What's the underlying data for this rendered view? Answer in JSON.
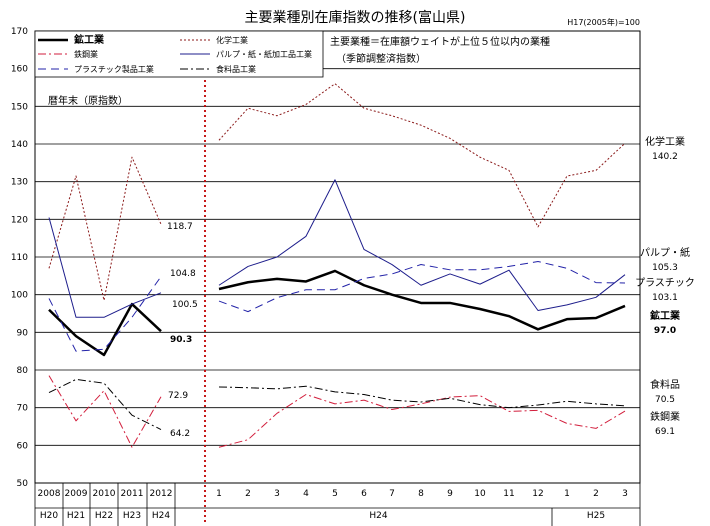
{
  "chart_data": {
    "type": "line",
    "title": "主要業種別在庫指数の推移(富山県)",
    "base_note": "H17(2005年)=100",
    "note_lines": [
      "主要業種＝在庫額ウェイトが上位５位以内の業種",
      "（季節調整済指数）"
    ],
    "panel_label": "暦年末（原指数）",
    "ylim": [
      50,
      170
    ],
    "yticks": [
      50,
      60,
      70,
      80,
      90,
      100,
      110,
      120,
      130,
      140,
      150,
      160,
      170
    ],
    "annual_x": [
      "2008",
      "2009",
      "2010",
      "2011",
      "2012"
    ],
    "annual_era": [
      "H20",
      "H21",
      "H22",
      "H23",
      "H24"
    ],
    "monthly_x": [
      "1",
      "2",
      "3",
      "4",
      "5",
      "6",
      "7",
      "8",
      "9",
      "10",
      "11",
      "12",
      "1",
      "2",
      "3"
    ],
    "monthly_group_labels": [
      {
        "label": "H24",
        "span": [
          0,
          11
        ]
      },
      {
        "label": "H25",
        "span": [
          12,
          14
        ]
      }
    ],
    "series": [
      {
        "key": "mining",
        "name": "鉱工業",
        "color": "#000000",
        "width": 2.5,
        "dash": "",
        "annual": [
          96,
          89,
          84,
          97.5,
          90.3
        ],
        "monthly": [
          101.5,
          103.3,
          104.2,
          103.5,
          106.3,
          102.5,
          100,
          97.8,
          97.8,
          96.2,
          94.3,
          90.8,
          93.5,
          93.8,
          97.0
        ],
        "end_label": [
          "鉱工業",
          "97.0"
        ],
        "end_color": "#000000",
        "annual_end": "90.3"
      },
      {
        "key": "chemical",
        "name": "化学工業",
        "color": "#8b1a1a",
        "width": 1,
        "dash": "2,2",
        "annual": [
          107,
          131.5,
          98.5,
          136.5,
          118.7
        ],
        "monthly": [
          141,
          149.5,
          147.5,
          150.5,
          156,
          149.5,
          147.5,
          145,
          141.5,
          136.5,
          133,
          118,
          131.5,
          133,
          140.2
        ],
        "end_label": [
          "化学工業",
          "140.2"
        ],
        "end_color": "#8b1a1a",
        "annual_end": "118.7"
      },
      {
        "key": "steel",
        "name": "鉄鋼業",
        "color": "#d21e3c",
        "width": 1,
        "dash": "8,3,2,3",
        "annual": [
          78.5,
          66.5,
          74.5,
          59.5,
          72.9
        ],
        "monthly": [
          59.5,
          61.5,
          68.5,
          73.5,
          71,
          72,
          69.5,
          71,
          72.8,
          73.2,
          69,
          69.3,
          65.8,
          64.5,
          69.1
        ],
        "end_label": [
          "鉄鋼業",
          "69.1"
        ],
        "end_color": "#d21e3c",
        "annual_end": "72.9"
      },
      {
        "key": "pulp",
        "name": "パルプ・紙・紙加工品工業",
        "color": "#1e1e8c",
        "width": 1,
        "dash": "",
        "annual": [
          120.5,
          94,
          94,
          97.5,
          100.5
        ],
        "monthly": [
          102.5,
          107.5,
          110,
          115.5,
          130.5,
          112,
          108,
          102.5,
          105.5,
          102.8,
          106.5,
          95.8,
          97.3,
          99.3,
          105.3
        ],
        "end_label": [
          "パルプ・紙",
          "105.3"
        ],
        "end_color": "#000000",
        "annual_end": "100.5"
      },
      {
        "key": "plastic",
        "name": "プラスチック製品工業",
        "color": "#2323a8",
        "width": 1,
        "dash": "8,5",
        "annual": [
          99,
          85,
          85.5,
          94,
          104.8
        ],
        "monthly": [
          98.3,
          95.5,
          99.2,
          101.3,
          101.3,
          104.3,
          105.5,
          108,
          106.6,
          106.6,
          107.5,
          108.8,
          107,
          103.2,
          103.1
        ],
        "end_label": [
          "プラスチック",
          "103.1"
        ],
        "end_color": "#2323a8",
        "annual_end": "104.8"
      },
      {
        "key": "food",
        "name": "食料品工業",
        "color": "#000000",
        "width": 1,
        "dash": "8,3,2,3",
        "annual": [
          74,
          77.5,
          76.5,
          68,
          64.2
        ],
        "monthly": [
          75.5,
          75.3,
          75,
          75.7,
          74.2,
          73.5,
          72,
          71.5,
          72.5,
          70.8,
          70,
          70.7,
          71.7,
          71,
          70.5
        ],
        "end_label": [
          "食料品",
          "70.5"
        ],
        "end_color": "#333333",
        "annual_end": "64.2"
      }
    ],
    "legend_order": [
      "mining",
      "chemical",
      "steel",
      "pulp",
      "plastic",
      "food"
    ],
    "legend_placement": "top-left",
    "grid": true,
    "divider_color": "#c00000"
  }
}
